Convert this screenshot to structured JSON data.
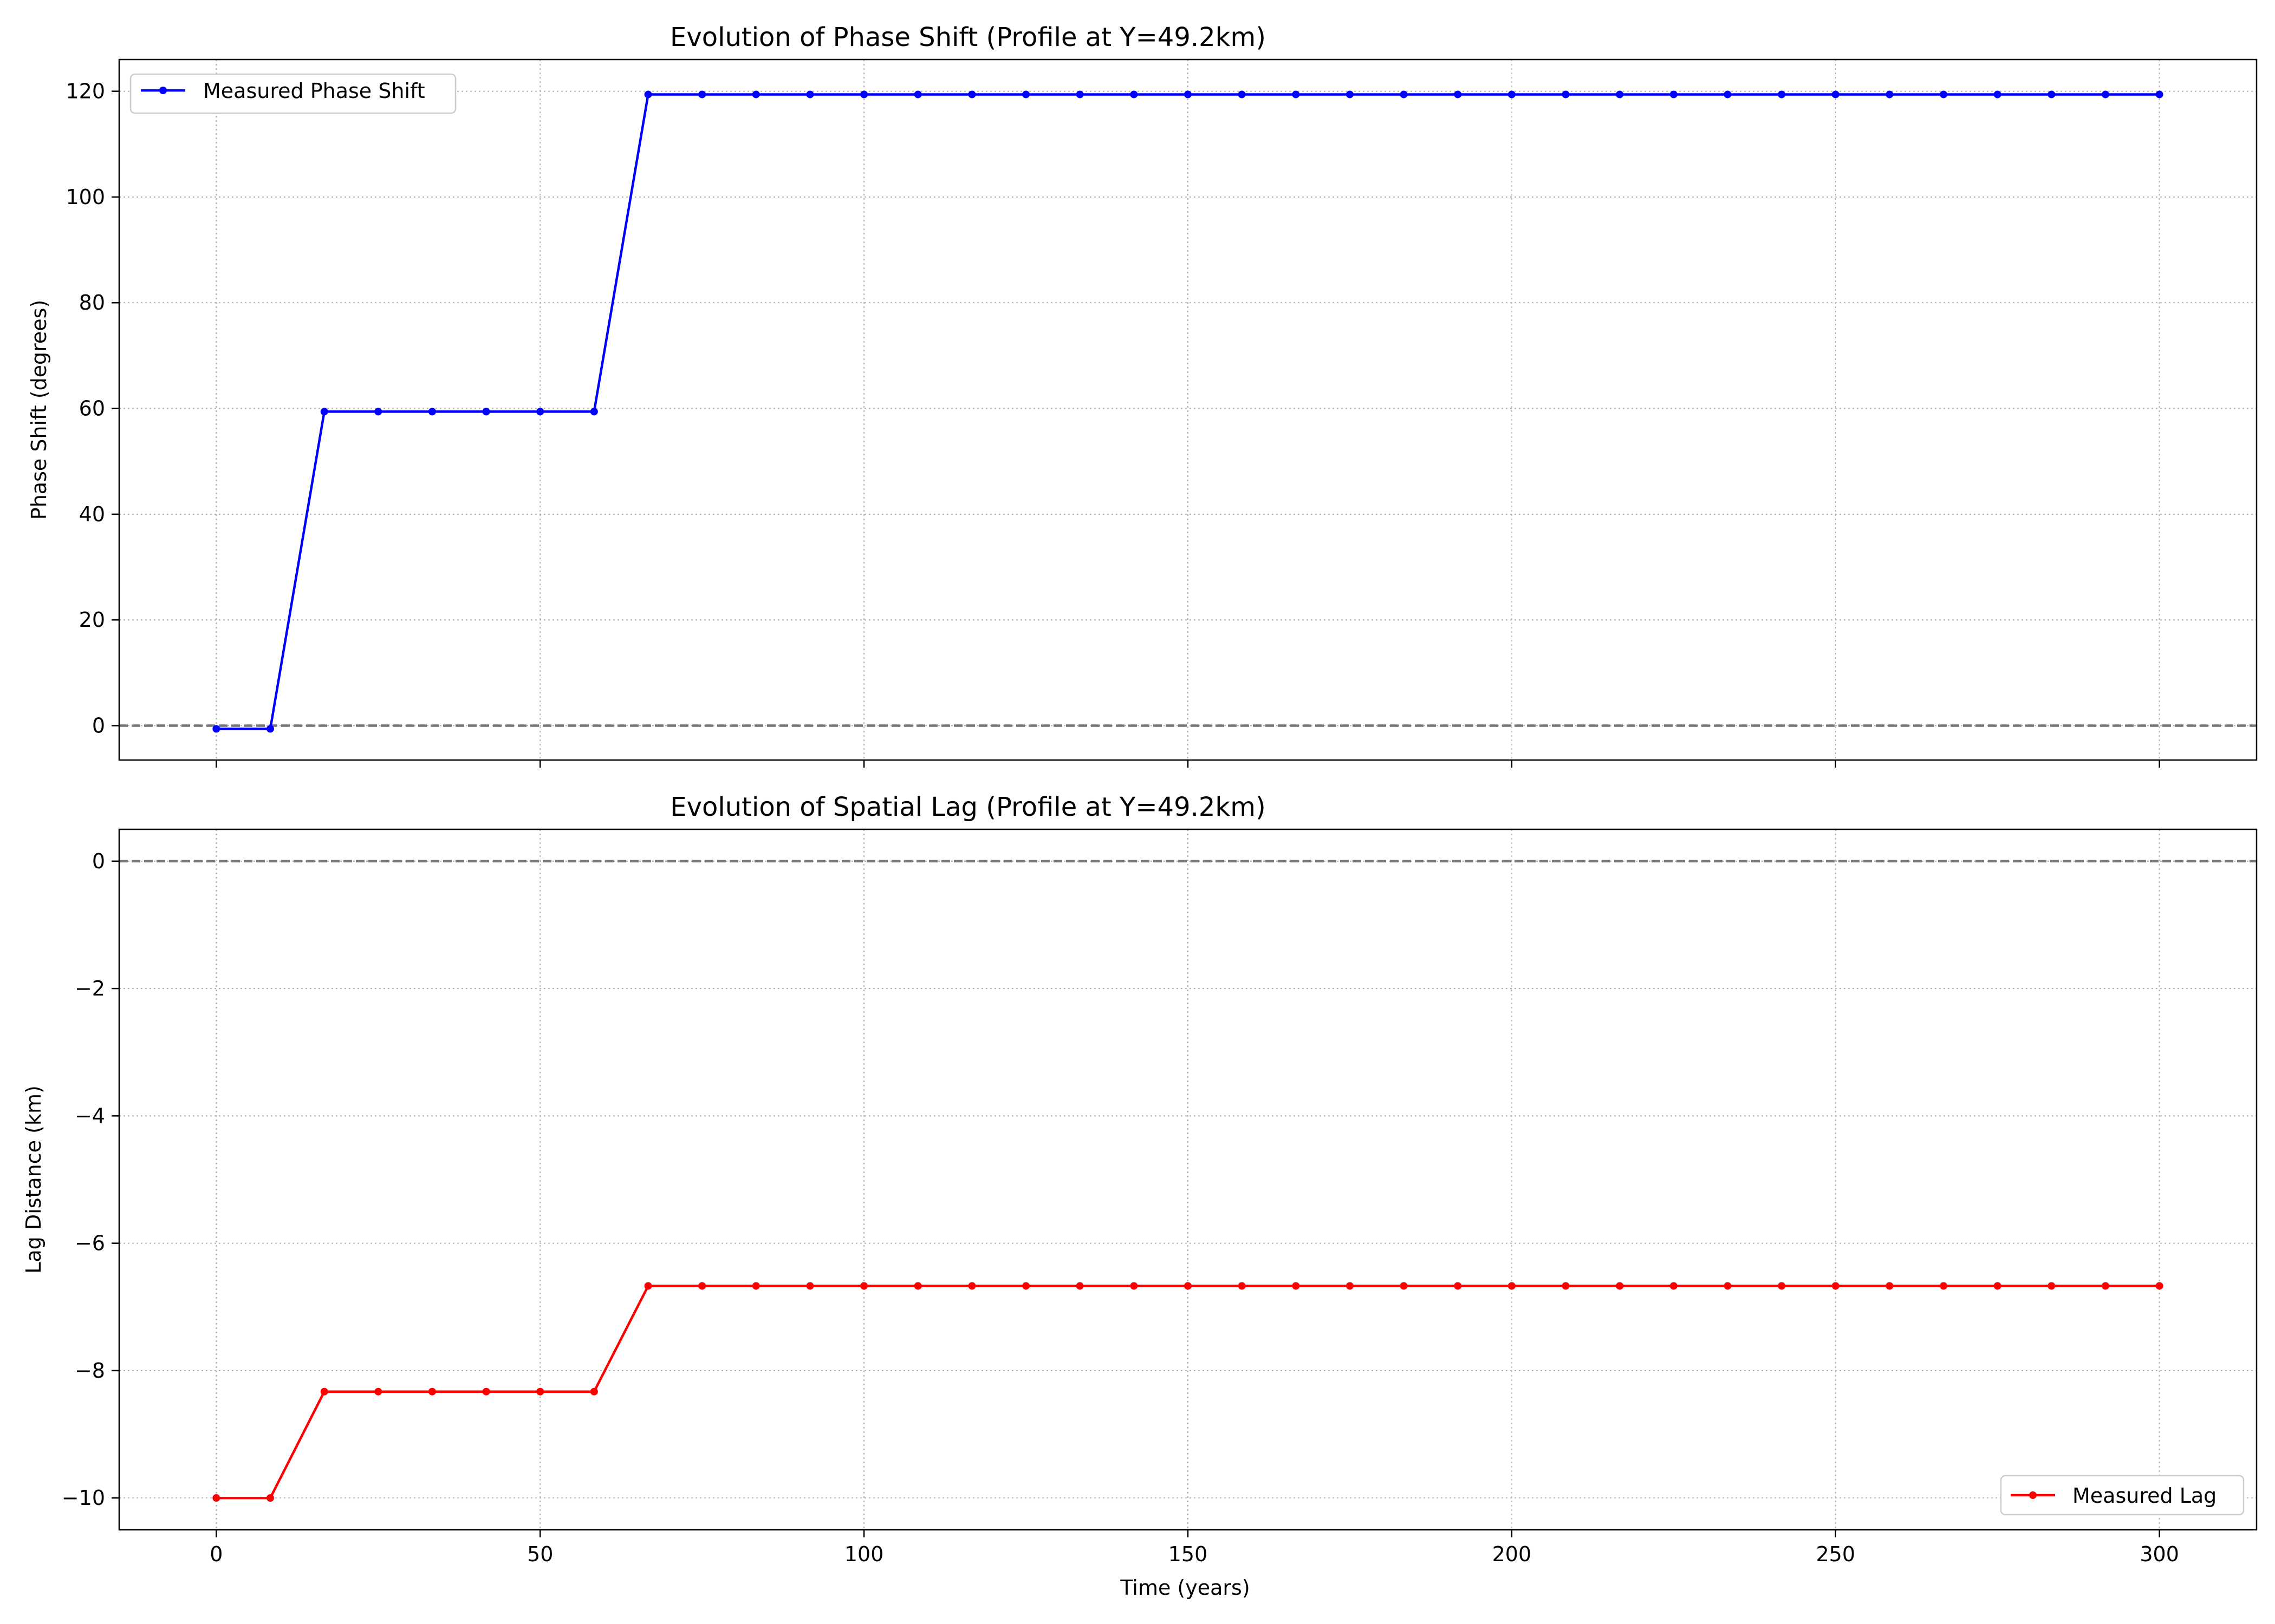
{
  "chart_data": [
    {
      "type": "line",
      "title": "Evolution of Phase Shift (Profile at Y=49.2km)",
      "xlabel": "",
      "ylabel": "Phase Shift (degrees)",
      "xlim": [
        -15,
        315
      ],
      "ylim": [
        -6.5,
        126
      ],
      "xticks": [
        0,
        50,
        100,
        150,
        200,
        250,
        300
      ],
      "xtick_labels_visible": false,
      "yticks": [
        0,
        20,
        40,
        60,
        80,
        100,
        120
      ],
      "grid": true,
      "reference_line_y": 0,
      "legend": "upper left",
      "series": [
        {
          "name": "Measured Phase Shift",
          "color": "#0000ff",
          "marker": "dot",
          "x": [
            0,
            8.33,
            16.67,
            25,
            33.33,
            41.67,
            50,
            58.33,
            66.67,
            75,
            83.33,
            91.67,
            100,
            108.33,
            116.67,
            125,
            133.33,
            141.67,
            150,
            158.33,
            166.67,
            175,
            183.33,
            191.67,
            200,
            208.33,
            216.67,
            225,
            233.33,
            241.67,
            250,
            258.33,
            266.67,
            275,
            283.33,
            291.67,
            300
          ],
          "y": [
            -0.6,
            -0.6,
            59.4,
            59.4,
            59.4,
            59.4,
            59.4,
            59.4,
            119.4,
            119.4,
            119.4,
            119.4,
            119.4,
            119.4,
            119.4,
            119.4,
            119.4,
            119.4,
            119.4,
            119.4,
            119.4,
            119.4,
            119.4,
            119.4,
            119.4,
            119.4,
            119.4,
            119.4,
            119.4,
            119.4,
            119.4,
            119.4,
            119.4,
            119.4,
            119.4,
            119.4,
            119.4
          ]
        }
      ]
    },
    {
      "type": "line",
      "title": "Evolution of Spatial Lag (Profile at Y=49.2km)",
      "xlabel": "Time (years)",
      "ylabel": "Lag Distance (km)",
      "xlim": [
        -15,
        315
      ],
      "ylim": [
        -10.5,
        0.5
      ],
      "xticks": [
        0,
        50,
        100,
        150,
        200,
        250,
        300
      ],
      "xtick_labels": [
        "0",
        "50",
        "100",
        "150",
        "200",
        "250",
        "300"
      ],
      "yticks": [
        0,
        -2,
        -4,
        -6,
        -8,
        -10
      ],
      "ytick_labels": [
        "0",
        "−2",
        "−4",
        "−6",
        "−8",
        "−10"
      ],
      "grid": true,
      "reference_line_y": 0,
      "legend": "lower right",
      "series": [
        {
          "name": "Measured Lag",
          "color": "#ff0000",
          "marker": "dot",
          "x": [
            0,
            8.33,
            16.67,
            25,
            33.33,
            41.67,
            50,
            58.33,
            66.67,
            75,
            83.33,
            91.67,
            100,
            108.33,
            116.67,
            125,
            133.33,
            141.67,
            150,
            158.33,
            166.67,
            175,
            183.33,
            191.67,
            200,
            208.33,
            216.67,
            225,
            233.33,
            241.67,
            250,
            258.33,
            266.67,
            275,
            283.33,
            291.67,
            300
          ],
          "y": [
            -10.0,
            -10.0,
            -8.33,
            -8.33,
            -8.33,
            -8.33,
            -8.33,
            -8.33,
            -6.67,
            -6.67,
            -6.67,
            -6.67,
            -6.67,
            -6.67,
            -6.67,
            -6.67,
            -6.67,
            -6.67,
            -6.67,
            -6.67,
            -6.67,
            -6.67,
            -6.67,
            -6.67,
            -6.67,
            -6.67,
            -6.67,
            -6.67,
            -6.67,
            -6.67,
            -6.67,
            -6.67,
            -6.67,
            -6.67,
            -6.67,
            -6.67,
            -6.67
          ]
        }
      ]
    }
  ]
}
